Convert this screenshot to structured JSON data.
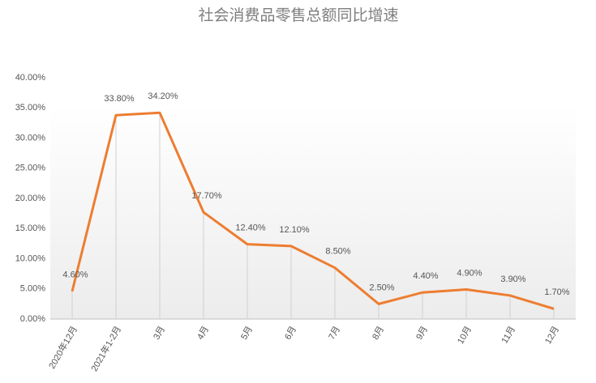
{
  "chart_data": {
    "type": "line",
    "title": "社会消费品零售总额同比增速",
    "categories": [
      "2020年12月",
      "2021年1-2月",
      "3月",
      "4月",
      "5月",
      "6月",
      "7月",
      "8月",
      "9月",
      "10月",
      "11月",
      "12月"
    ],
    "series": [
      {
        "color": "#ed7d31",
        "values": [
          4.6,
          33.8,
          34.2,
          17.7,
          12.4,
          12.1,
          8.5,
          2.5,
          4.4,
          4.9,
          3.9,
          1.7
        ],
        "value_labels": [
          "4.60%",
          "33.80%",
          "34.20%",
          "17.70%",
          "12.40%",
          "12.10%",
          "8.50%",
          "2.50%",
          "4.40%",
          "4.90%",
          "3.90%",
          "1.70%"
        ]
      }
    ],
    "ylim": [
      0,
      40
    ],
    "yticks": [
      {
        "value": 0,
        "label": "0.00%"
      },
      {
        "value": 5,
        "label": "5.00%"
      },
      {
        "value": 10,
        "label": "10.00%"
      },
      {
        "value": 15,
        "label": "15.00%"
      },
      {
        "value": 20,
        "label": "20.00%"
      },
      {
        "value": 25,
        "label": "25.00%"
      },
      {
        "value": 30,
        "label": "30.00%"
      },
      {
        "value": 35,
        "label": "35.00%"
      },
      {
        "value": 40,
        "label": "40.00%"
      }
    ],
    "drop_lines": true
  }
}
